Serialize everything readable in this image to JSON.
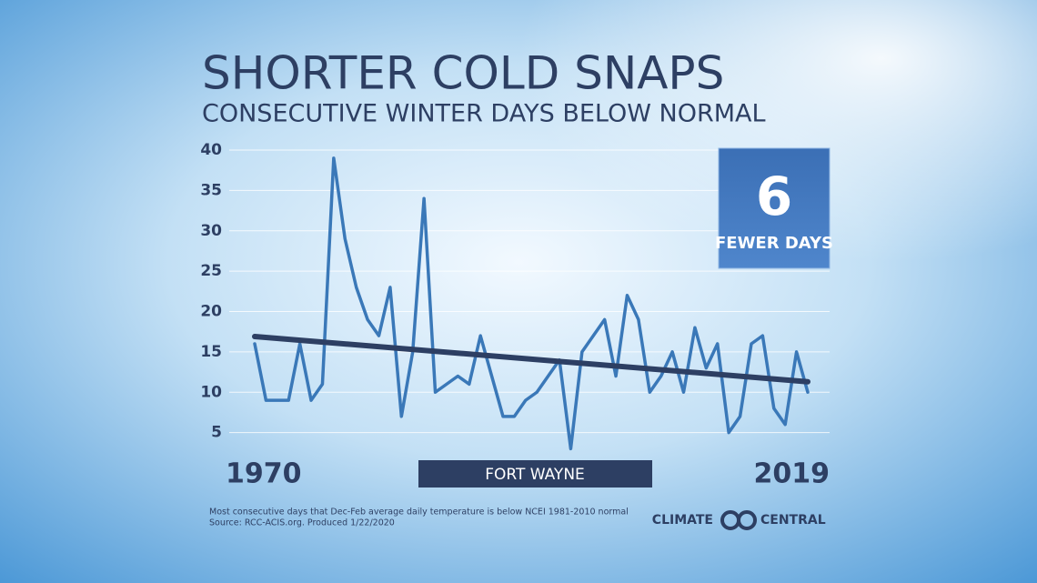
{
  "chart_data": {
    "type": "line",
    "title": "SHORTER COLD SNAPS",
    "subtitle": "CONSECUTIVE WINTER DAYS BELOW NORMAL",
    "x": [
      1970,
      1971,
      1972,
      1973,
      1974,
      1975,
      1976,
      1977,
      1978,
      1979,
      1980,
      1981,
      1982,
      1983,
      1984,
      1985,
      1986,
      1987,
      1988,
      1989,
      1990,
      1991,
      1992,
      1993,
      1994,
      1995,
      1996,
      1997,
      1998,
      1999,
      2000,
      2001,
      2002,
      2003,
      2004,
      2005,
      2006,
      2007,
      2008,
      2009,
      2010,
      2011,
      2012,
      2013,
      2014,
      2015,
      2016,
      2017,
      2018,
      2019
    ],
    "series": [
      {
        "color": "#3a78b8",
        "values": [
          16,
          9,
          9,
          9,
          16,
          9,
          11,
          39,
          29,
          23,
          19,
          17,
          23,
          7,
          15,
          34,
          10,
          11,
          12,
          11,
          17,
          12,
          7,
          7,
          9,
          10,
          12,
          14,
          3,
          15,
          17,
          19,
          12,
          22,
          19,
          10,
          12,
          15,
          10,
          18,
          13,
          16,
          5,
          7,
          16,
          17,
          8,
          6,
          15,
          10
        ]
      }
    ],
    "trend": {
      "color": "#2d3f63",
      "x": [
        1970,
        2019
      ],
      "values": [
        16.9,
        11.3
      ]
    },
    "xlim": [
      1970,
      2019
    ],
    "xticks": [
      1970,
      2019
    ],
    "ylim": [
      0,
      40
    ],
    "yticks": [
      5,
      10,
      15,
      20,
      25,
      30,
      35,
      40
    ],
    "grid": true,
    "location": "FORT WAYNE",
    "badge": {
      "number": "6",
      "label": "FEWER DAYS"
    },
    "footnote": [
      "Most consecutive days that  Dec-Feb average daily temperature is  below NCEI 1981-2010 normal",
      "Source: RCC-ACIS.org. Produced 1/22/2020"
    ],
    "logo": {
      "left": "CLIMATE",
      "right": "CENTRAL"
    }
  }
}
